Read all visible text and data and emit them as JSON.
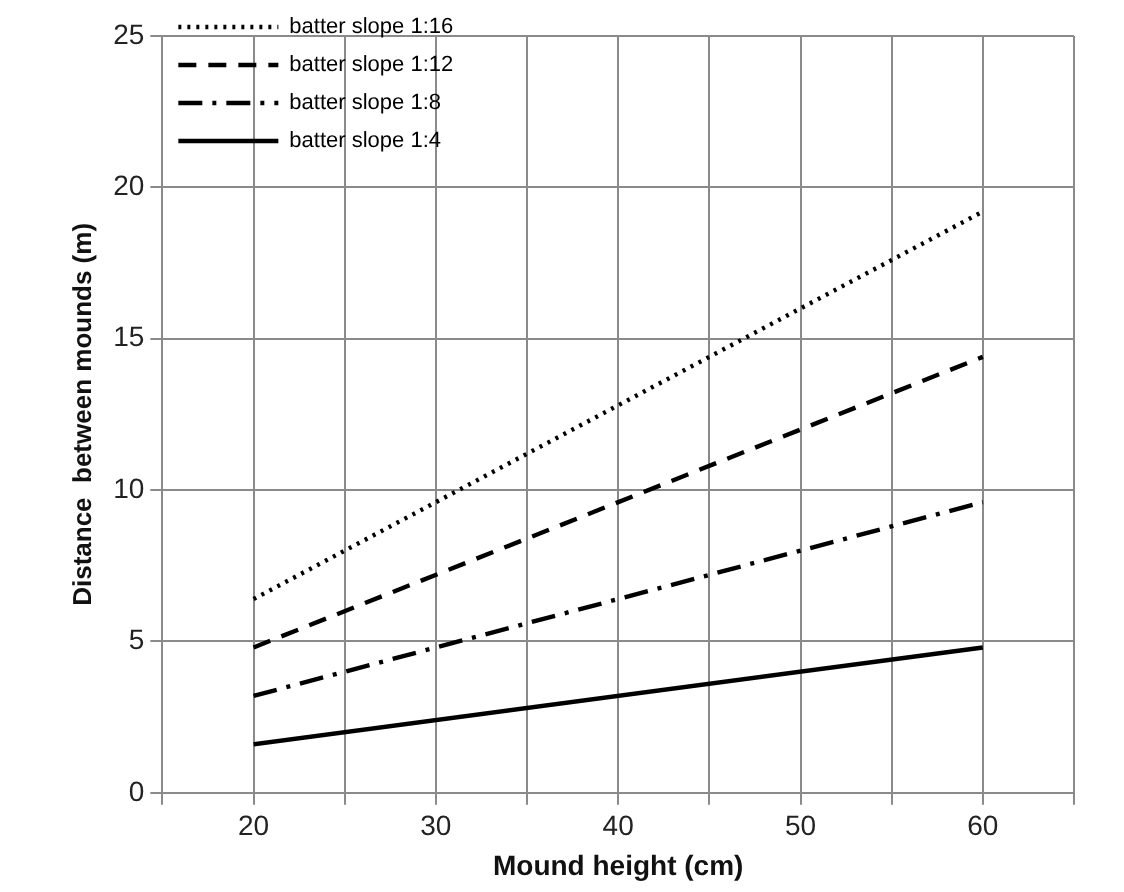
{
  "chart_data": {
    "type": "line",
    "xlabel": "Mound height (cm)",
    "ylabel": "Distance  between mounds (m)",
    "x": [
      20,
      60
    ],
    "series": [
      {
        "name": "batter slope 1:16",
        "color": "#000000",
        "values": [
          6.4,
          19.2
        ],
        "line_style": "dotted"
      },
      {
        "name": "batter slope 1:12",
        "color": "#000000",
        "values": [
          4.8,
          14.4
        ],
        "line_style": "dashed"
      },
      {
        "name": "batter slope 1:8",
        "color": "#000000",
        "values": [
          3.2,
          9.6
        ],
        "line_style": "dashdot"
      },
      {
        "name": "batter slope 1:4",
        "color": "#000000",
        "values": [
          1.6,
          4.8
        ],
        "line_style": "solid"
      }
    ],
    "xlim": [
      15,
      65
    ],
    "xticks": [
      {
        "value": 15,
        "label": null
      },
      20,
      {
        "value": 25,
        "label": null
      },
      30,
      {
        "value": 35,
        "label": null
      },
      40,
      {
        "value": 45,
        "label": null
      },
      50,
      {
        "value": 55,
        "label": null
      },
      60,
      {
        "value": 65,
        "label": null
      }
    ],
    "ylim": [
      0,
      25
    ],
    "yticks": [
      0,
      5,
      10,
      15,
      20,
      25
    ],
    "grid": true,
    "legend": "top left",
    "marker": "none"
  }
}
